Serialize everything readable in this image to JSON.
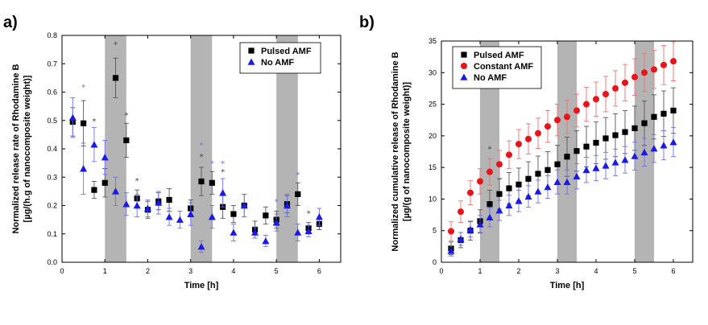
{
  "chart_data": [
    {
      "panel_label": "a)",
      "type": "scatter",
      "xlabel": "Time [h]",
      "ylabel_line1": "Normalized release rate of Rhodamine B",
      "ylabel_line2": "[µg/(h.g of nanocomposite weight)]",
      "xlim": [
        0,
        6.5
      ],
      "ylim": [
        0,
        0.8
      ],
      "xticks": [
        0,
        1,
        2,
        3,
        4,
        5,
        6
      ],
      "yticks": [
        0.0,
        0.1,
        0.2,
        0.3,
        0.4,
        0.5,
        0.6,
        0.7,
        0.8
      ],
      "shaded_intervals": [
        [
          1.0,
          1.5
        ],
        [
          3.0,
          3.5
        ],
        [
          5.0,
          5.5
        ]
      ],
      "legend_position": "top-right",
      "series": [
        {
          "name": "Pulsed AMF",
          "marker": "square",
          "color": "#000000",
          "x": [
            0.25,
            0.5,
            0.75,
            1.0,
            1.25,
            1.5,
            1.75,
            2.0,
            2.25,
            2.5,
            3.0,
            3.25,
            3.5,
            3.75,
            4.0,
            4.25,
            4.5,
            4.75,
            5.0,
            5.25,
            5.5,
            5.75,
            6.0
          ],
          "y": [
            0.495,
            0.49,
            0.255,
            0.28,
            0.65,
            0.43,
            0.225,
            0.185,
            0.215,
            0.22,
            0.19,
            0.285,
            0.28,
            0.195,
            0.17,
            0.2,
            0.115,
            0.165,
            0.15,
            0.205,
            0.24,
            0.12,
            0.135
          ],
          "err": [
            0.05,
            0.08,
            0.03,
            0.05,
            0.07,
            0.06,
            0.03,
            0.03,
            0.03,
            0.04,
            0.03,
            0.05,
            0.04,
            0.04,
            0.03,
            0.04,
            0.03,
            0.03,
            0.03,
            0.03,
            0.04,
            0.02,
            0.02
          ]
        },
        {
          "name": "No AMF",
          "marker": "triangle",
          "color": "#1a1ae6",
          "x": [
            0.25,
            0.5,
            0.75,
            1.0,
            1.25,
            1.5,
            1.75,
            2.0,
            2.25,
            2.5,
            2.75,
            3.0,
            3.25,
            3.5,
            3.75,
            4.0,
            4.25,
            4.5,
            4.75,
            5.0,
            5.25,
            5.5,
            5.75,
            6.0
          ],
          "y": [
            0.51,
            0.33,
            0.415,
            0.37,
            0.25,
            0.205,
            0.2,
            0.19,
            0.21,
            0.16,
            0.15,
            0.17,
            0.055,
            0.16,
            0.245,
            0.105,
            0.2,
            0.105,
            0.075,
            0.14,
            0.2,
            0.105,
            0.11,
            0.16
          ],
          "err": [
            0.07,
            0.09,
            0.06,
            0.06,
            0.05,
            0.04,
            0.04,
            0.03,
            0.04,
            0.03,
            0.03,
            0.04,
            0.02,
            0.04,
            0.05,
            0.03,
            0.04,
            0.02,
            0.02,
            0.03,
            0.04,
            0.03,
            0.02,
            0.03
          ]
        }
      ],
      "annotations": [
        {
          "text": "*",
          "x": 0.5,
          "y": 0.62,
          "color": "#6e6eff"
        },
        {
          "text": "*",
          "x": 0.75,
          "y": 0.5,
          "color": "#444444"
        },
        {
          "text": "*",
          "x": 1.25,
          "y": 0.77,
          "color": "#444444"
        },
        {
          "text": "*",
          "x": 1.5,
          "y": 0.52,
          "color": "#444444"
        },
        {
          "text": "*",
          "x": 1.75,
          "y": 0.29,
          "color": "#444444"
        },
        {
          "text": "*",
          "x": 3.25,
          "y": 0.415,
          "color": "#6e6eff"
        },
        {
          "text": "*",
          "x": 3.25,
          "y": 0.375,
          "color": "#444444"
        },
        {
          "text": "*",
          "x": 3.5,
          "y": 0.35,
          "color": "#6e6eff"
        },
        {
          "text": "*",
          "x": 3.75,
          "y": 0.35,
          "color": "#6e6eff"
        },
        {
          "text": "*",
          "x": 3.75,
          "y": 0.32,
          "color": "#444444"
        },
        {
          "text": "*",
          "x": 5.0,
          "y": 0.215,
          "color": "#6e6eff"
        },
        {
          "text": "*",
          "x": 5.5,
          "y": 0.31,
          "color": "#6e6eff"
        },
        {
          "text": "*",
          "x": 5.75,
          "y": 0.175,
          "color": "#444444"
        }
      ]
    },
    {
      "panel_label": "b)",
      "type": "scatter",
      "xlabel": "Time [h]",
      "ylabel_line1": "Normalized cumulative release of Rhodamine B",
      "ylabel_line2": "[µg/(g of nanocomposite weight)]",
      "xlim": [
        0,
        6.5
      ],
      "ylim": [
        0,
        35
      ],
      "xticks": [
        0,
        1,
        2,
        3,
        4,
        5,
        6
      ],
      "yticks": [
        0,
        5,
        10,
        15,
        20,
        25,
        30,
        35
      ],
      "shaded_intervals": [
        [
          1.0,
          1.5
        ],
        [
          3.0,
          3.5
        ],
        [
          5.0,
          5.5
        ]
      ],
      "legend_position": "top-left",
      "series": [
        {
          "name": "Pulsed AMF",
          "marker": "square",
          "color": "#000000",
          "x": [
            0.25,
            0.5,
            0.75,
            1.0,
            1.25,
            1.5,
            1.75,
            2.0,
            2.25,
            2.5,
            2.75,
            3.0,
            3.25,
            3.5,
            3.75,
            4.0,
            4.25,
            4.5,
            4.75,
            5.0,
            5.25,
            5.5,
            5.75,
            6.0
          ],
          "y": [
            2.2,
            3.5,
            5.0,
            6.5,
            9.2,
            10.8,
            11.7,
            12.3,
            13.2,
            14.0,
            14.6,
            15.5,
            16.7,
            17.6,
            18.3,
            18.9,
            19.6,
            20.1,
            20.6,
            21.2,
            22.0,
            23.0,
            23.5,
            24.0
          ],
          "err": [
            1.0,
            1.2,
            1.5,
            1.8,
            2.2,
            2.4,
            2.5,
            2.6,
            2.7,
            2.8,
            2.9,
            3.0,
            3.1,
            3.2,
            3.2,
            3.3,
            3.3,
            3.4,
            3.4,
            3.5,
            3.5,
            3.5,
            3.6,
            3.6
          ]
        },
        {
          "name": "Constant AMF",
          "marker": "circle",
          "color": "#e8141a",
          "x": [
            0.25,
            0.5,
            0.75,
            1.0,
            1.25,
            1.5,
            1.75,
            2.0,
            2.25,
            2.5,
            2.75,
            3.0,
            3.25,
            3.5,
            3.75,
            4.0,
            4.25,
            4.5,
            4.75,
            5.0,
            5.25,
            5.5,
            5.75,
            6.0
          ],
          "y": [
            4.9,
            8.0,
            11.0,
            12.8,
            14.3,
            15.5,
            17.0,
            18.7,
            19.5,
            20.4,
            21.5,
            22.5,
            23.0,
            24.0,
            25.0,
            25.8,
            26.6,
            27.5,
            28.4,
            29.3,
            30.0,
            30.5,
            31.2,
            31.8
          ],
          "err": [
            1.5,
            1.7,
            1.9,
            2.0,
            2.1,
            2.2,
            2.2,
            2.3,
            2.4,
            2.4,
            2.5,
            2.5,
            2.6,
            2.6,
            2.7,
            2.7,
            2.8,
            2.8,
            2.9,
            2.9,
            3.0,
            3.0,
            3.1,
            3.1
          ]
        },
        {
          "name": "No AMF",
          "marker": "triangle",
          "color": "#1a1ae6",
          "x": [
            0.25,
            0.5,
            0.75,
            1.0,
            1.25,
            1.5,
            1.75,
            2.0,
            2.25,
            2.5,
            2.75,
            3.0,
            3.25,
            3.5,
            3.75,
            4.0,
            4.25,
            4.5,
            4.75,
            5.0,
            5.25,
            5.5,
            5.75,
            6.0
          ],
          "y": [
            1.8,
            3.7,
            5.2,
            6.0,
            7.1,
            8.2,
            9.0,
            9.7,
            10.4,
            11.2,
            11.9,
            12.7,
            12.7,
            13.6,
            14.6,
            14.9,
            15.3,
            15.8,
            16.2,
            16.8,
            17.4,
            18.0,
            18.5,
            19.0
          ],
          "err": [
            0.8,
            1.0,
            1.2,
            1.4,
            1.5,
            1.6,
            1.6,
            1.7,
            1.7,
            1.8,
            1.8,
            1.9,
            1.9,
            2.0,
            2.0,
            2.0,
            2.1,
            2.1,
            2.1,
            2.2,
            2.2,
            2.2,
            2.3,
            2.3
          ]
        }
      ],
      "annotations": [
        {
          "text": "*",
          "x": 1.25,
          "y": 18.0,
          "color": "#444444"
        }
      ]
    }
  ]
}
